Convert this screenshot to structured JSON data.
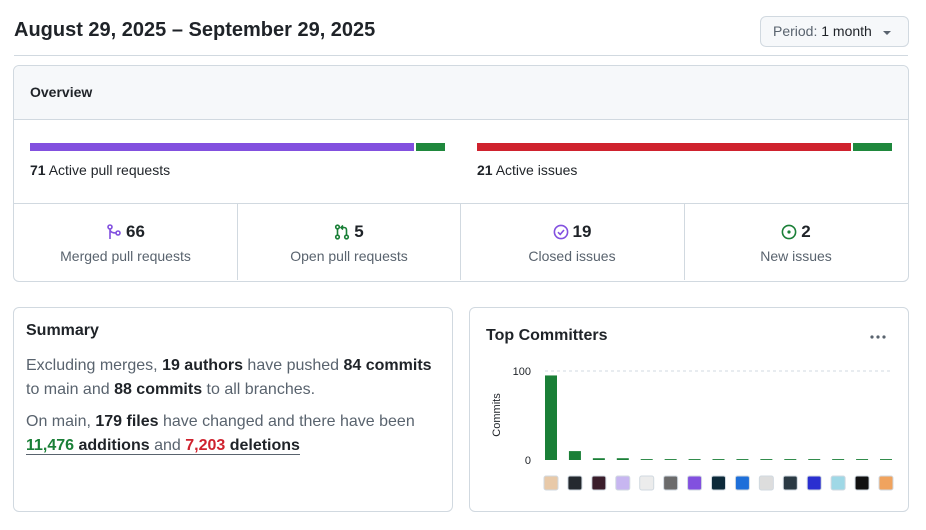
{
  "header": {
    "title": "August 29, 2025 – September 29, 2025",
    "period_label": "Period:",
    "period_value": "1 month"
  },
  "overview": {
    "title": "Overview",
    "pull_requests": {
      "count": 71,
      "label": "Active pull requests",
      "merged": 66,
      "merged_label": "Merged pull requests",
      "open": 5,
      "open_label": "Open pull requests"
    },
    "issues": {
      "count": 21,
      "label": "Active issues",
      "closed": 19,
      "closed_label": "Closed issues",
      "new": 2,
      "new_label": "New issues"
    }
  },
  "summary": {
    "title": "Summary",
    "paragraphs": [
      [
        "Excluding merges, ",
        "19 authors",
        " have pushed ",
        "84 commits",
        " to main and ",
        "88 commits",
        " to all branches."
      ],
      [
        "On main, ",
        "179 files",
        " have changed and there have been ",
        "11,476",
        " additions",
        " and ",
        "7,203",
        " deletions"
      ]
    ]
  },
  "top_committers": {
    "title": "Top Committers",
    "chart": {
      "type": "bar",
      "y_label": "Commits",
      "ylim": [
        0,
        100
      ],
      "yticks": [
        0,
        100
      ],
      "grid": true,
      "color": "#1a7f37",
      "values": [
        95,
        10,
        2,
        2,
        1,
        1,
        1,
        1,
        1,
        1,
        1,
        1,
        1,
        1,
        1
      ]
    }
  }
}
